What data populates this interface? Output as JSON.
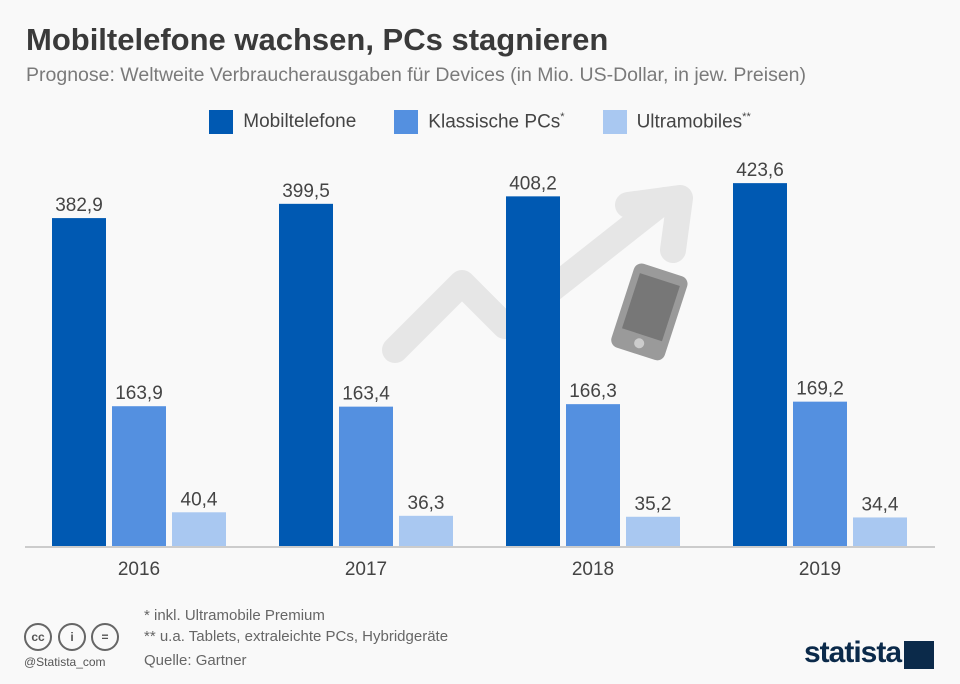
{
  "header": {
    "title": "Mobiltelefone wachsen, PCs stagnieren",
    "subtitle": "Prognose: Weltweite Verbraucherausgaben für Devices (in Mio. US-Dollar, in jew. Preisen)"
  },
  "chart_data": {
    "type": "bar",
    "title": "Mobiltelefone wachsen, PCs stagnieren",
    "categories": [
      "2016",
      "2017",
      "2018",
      "2019"
    ],
    "series": [
      {
        "name": "Mobiltelefone",
        "sup": "",
        "color": "#0059b2",
        "values": [
          382.9,
          399.5,
          408.2,
          423.6
        ],
        "labels": [
          "382,9",
          "399,5",
          "408,2",
          "423,6"
        ]
      },
      {
        "name": "Klassische PCs",
        "sup": "*",
        "color": "#5490e0",
        "values": [
          163.9,
          163.4,
          166.3,
          169.2
        ],
        "labels": [
          "163,9",
          "163,4",
          "166,3",
          "169,2"
        ]
      },
      {
        "name": "Ultramobiles",
        "sup": "**",
        "color": "#a9c8f1",
        "values": [
          40.4,
          36.3,
          35.2,
          34.4
        ],
        "labels": [
          "40,4",
          "36,3",
          "35,2",
          "34,4"
        ]
      }
    ],
    "xlabel": "",
    "ylabel": "",
    "ylim": [
      0,
      440
    ],
    "grid": false,
    "legend": "top-center"
  },
  "footer": {
    "note1": "*   inkl. Ultramobile Premium",
    "note2": "** u.a. Tablets, extraleichte PCs, Hybridgeräte",
    "source": "Quelle: Gartner",
    "handle": "@Statista_com",
    "logo": "statista",
    "cc_icons": [
      "cc",
      "i",
      "="
    ]
  }
}
